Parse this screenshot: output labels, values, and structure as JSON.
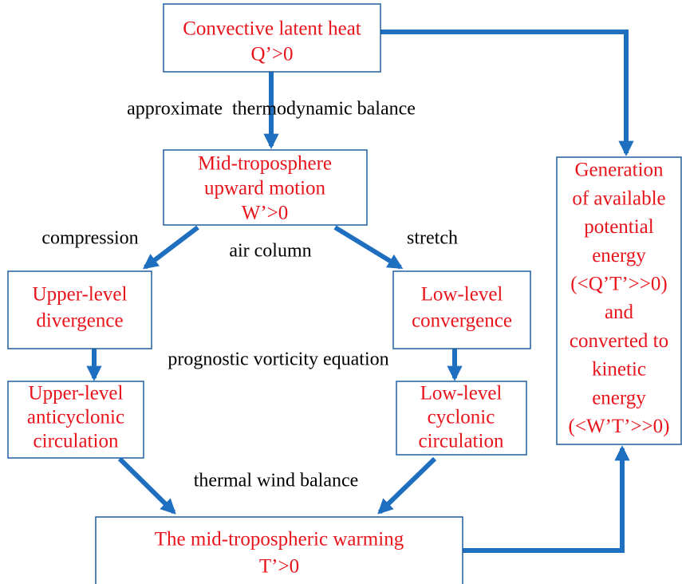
{
  "nodes": [
    {
      "lines": [
        "Convective latent heat",
        "Q’>0"
      ]
    },
    {
      "lines": [
        "Mid-troposphere",
        "upward motion",
        "W’>0"
      ]
    },
    {
      "lines": [
        "Upper-level",
        "divergence"
      ]
    },
    {
      "lines": [
        "Low-level",
        "convergence"
      ]
    },
    {
      "lines": [
        "Upper-level",
        "anticyclonic",
        "circulation"
      ]
    },
    {
      "lines": [
        "Low-level",
        "cyclonic",
        "circulation"
      ]
    },
    {
      "lines": [
        "The mid-tropospheric warming",
        "T’>0"
      ]
    },
    {
      "lines": [
        "Generation",
        "of available",
        "potential",
        "energy",
        "(<Q’T’>>0)",
        "and",
        "converted to",
        "kinetic",
        "energy",
        "(<W’T’>>0)"
      ]
    }
  ],
  "edge_labels": [
    "approximate  thermodynamic balance",
    "compression",
    "air column",
    "stretch",
    "prognostic vorticity equation",
    "thermal wind balance"
  ]
}
